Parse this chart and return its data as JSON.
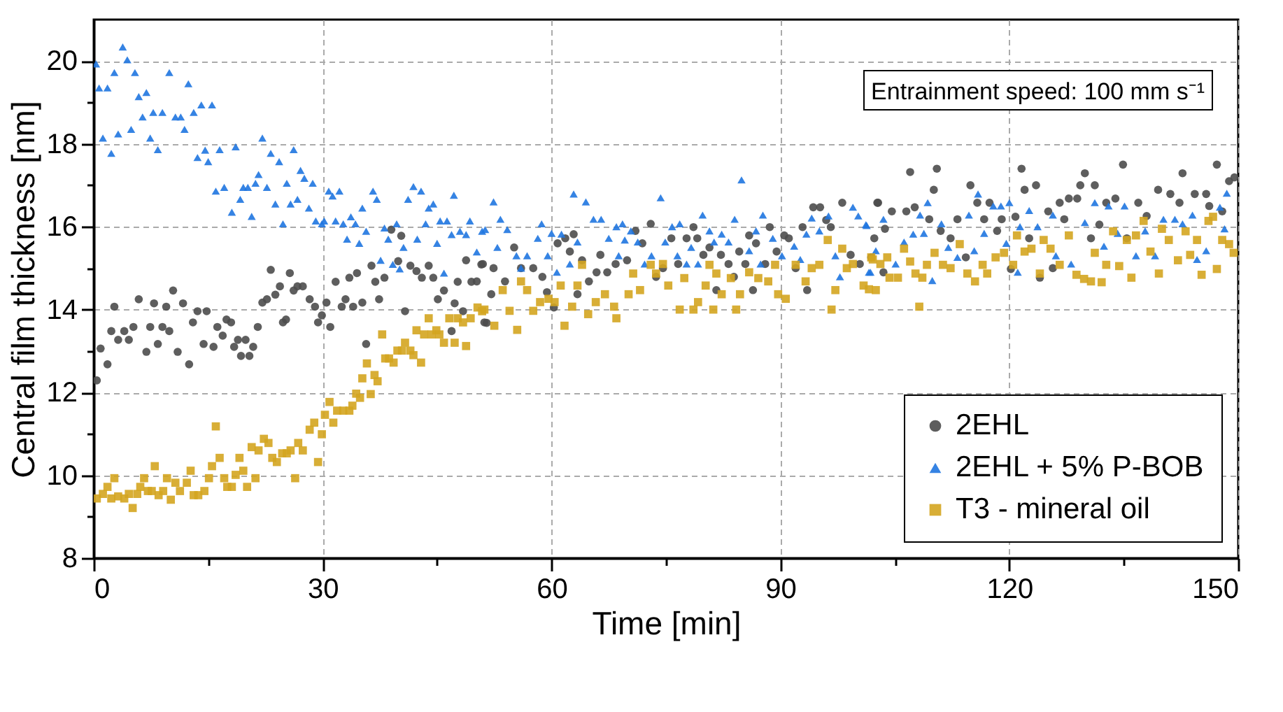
{
  "chart_data": {
    "type": "scatter",
    "xlabel": "Time [min]",
    "ylabel": "Central film thickness [nm]",
    "annotations": [
      "Entrainment speed: 100 mm s⁻¹"
    ],
    "xlim": [
      0,
      150
    ],
    "ylim": [
      8,
      21
    ],
    "xticks": [
      0,
      {
        "value": 15,
        "label": null
      },
      30,
      {
        "value": 45,
        "label": null
      },
      60,
      {
        "value": 75,
        "label": null
      },
      90,
      {
        "value": 105,
        "label": null
      },
      120,
      {
        "value": 135,
        "label": null
      },
      150
    ],
    "yticks": [
      8,
      {
        "value": 9,
        "label": null
      },
      10,
      {
        "value": 11,
        "label": null
      },
      12,
      {
        "value": 13,
        "label": null
      },
      14,
      {
        "value": 15,
        "label": null
      },
      16,
      {
        "value": 17,
        "label": null
      },
      18,
      {
        "value": 19,
        "label": null
      },
      20
    ],
    "grid": true,
    "legend": "bottom right",
    "series": [
      {
        "name": "2EHL",
        "color": "#4d4d4d",
        "marker": "circle",
        "x": [
          0.4,
          0.9,
          1.8,
          2.7,
          2.3,
          3.2,
          4.0,
          4.6,
          5.2,
          5.9,
          6.9,
          7.4,
          7.9,
          8.4,
          9.0,
          9.5,
          9.9,
          10.4,
          11.0,
          11.7,
          12.5,
          13.0,
          13.6,
          14.4,
          14.8,
          15.7,
          16.2,
          16.9,
          17.4,
          18.0,
          18.4,
          18.9,
          19.3,
          19.9,
          20.4,
          20.9,
          21.5,
          22.1,
          22.7,
          23.2,
          23.8,
          24.4,
          24.8,
          25.2,
          25.7,
          26.2,
          26.7,
          27.4,
          28.3,
          29.0,
          29.4,
          29.9,
          30.5,
          31.0,
          31.7,
          32.5,
          33.0,
          33.5,
          34.0,
          34.5,
          35.2,
          35.7,
          36.4,
          36.9,
          37.4,
          38.1,
          39.0,
          39.9,
          40.3,
          40.8,
          41.5,
          42.3,
          43.0,
          43.9,
          44.5,
          45.1,
          45.9,
          46.9,
          47.3,
          47.7,
          48.4,
          48.8,
          49.5,
          50.8,
          51.2,
          51.0,
          52.4,
          52.1,
          50.2,
          51.5,
          53.9,
          55.1,
          56.0,
          57.6,
          58.8,
          59.4,
          60.3,
          60.8,
          61.8,
          62.4,
          62.9,
          63.4,
          64.0,
          64.9,
          65.9,
          66.4,
          67.3,
          68.4,
          69.9,
          71.0,
          71.9,
          73.0,
          73.7,
          74.6,
          75.7,
          76.6,
          77.7,
          78.6,
          79.1,
          79.9,
          80.7,
          81.6,
          82.2,
          83.2,
          83.9,
          84.6,
          85.4,
          85.9,
          86.4,
          86.8,
          88.0,
          88.6,
          89.5,
          90.5,
          91.1,
          92.0,
          92.9,
          93.5,
          94.3,
          95.2,
          96.0,
          96.6,
          98.1,
          99.2,
          100.4,
          102.7,
          102.8,
          101.9,
          104.6,
          103.7,
          102.3,
          103.5,
          107.0,
          106.5,
          107.6,
          110.1,
          110.5,
          109.5,
          111.0,
          112.3,
          113.2,
          114.3,
          114.9,
          115.8,
          116.7,
          117.4,
          118.4,
          119.0,
          120.2,
          120.8,
          121.6,
          122.0,
          122.6,
          123.5,
          124.0,
          125.1,
          125.7,
          126.6,
          127.2,
          127.8,
          128.9,
          129.3,
          129.9,
          130.7,
          131.2,
          131.8,
          132.7,
          133.9,
          134.9,
          135.4,
          136.9,
          138.0,
          139.5,
          141.1,
          142.3,
          142.7,
          144.3,
          145.8,
          146.2,
          147.2,
          147.9,
          148.8,
          149.5
        ],
        "values": [
          12.29,
          13.06,
          12.68,
          14.07,
          13.48,
          13.27,
          13.48,
          13.27,
          13.58,
          14.25,
          12.98,
          13.58,
          14.15,
          13.17,
          13.58,
          14.07,
          13.48,
          14.46,
          12.98,
          14.15,
          12.68,
          13.69,
          13.96,
          13.17,
          13.96,
          13.1,
          13.58,
          13.37,
          13.76,
          13.69,
          13.1,
          13.27,
          12.88,
          13.27,
          12.88,
          13.1,
          13.58,
          14.17,
          14.25,
          14.96,
          14.36,
          14.56,
          13.69,
          13.76,
          14.88,
          14.46,
          14.56,
          14.56,
          14.25,
          14.07,
          13.69,
          13.86,
          14.17,
          13.58,
          14.67,
          14.07,
          14.25,
          14.77,
          14.07,
          14.88,
          14.17,
          13.17,
          15.06,
          14.67,
          14.25,
          14.77,
          15.93,
          15.17,
          15.78,
          13.96,
          15.06,
          14.93,
          14.77,
          15.06,
          14.77,
          14.25,
          14.46,
          13.48,
          14.15,
          14.67,
          13.96,
          15.19,
          14.67,
          15.09,
          13.69,
          15.1,
          15.0,
          14.37,
          14.68,
          13.68,
          14.68,
          15.5,
          15.0,
          15.0,
          14.79,
          14.42,
          14.05,
          15.6,
          15.72,
          15.4,
          15.82,
          14.37,
          15.19,
          14.68,
          14.9,
          15.32,
          14.9,
          15.1,
          15.19,
          15.9,
          15.6,
          16.07,
          14.79,
          15.0,
          15.72,
          15.1,
          15.72,
          15.99,
          15.72,
          15.32,
          15.5,
          14.47,
          15.32,
          15.1,
          14.79,
          15.4,
          15.1,
          15.79,
          14.47,
          15.6,
          15.1,
          15.99,
          15.4,
          15.79,
          15.72,
          15.0,
          15.99,
          14.47,
          16.47,
          16.47,
          16.16,
          15.99,
          16.58,
          15.32,
          15.1,
          16.58,
          16.58,
          15.26,
          16.37,
          15.95,
          15.72,
          14.9,
          17.32,
          16.37,
          16.47,
          16.89,
          17.4,
          16.18,
          15.9,
          15.72,
          16.18,
          15.26,
          17.0,
          16.58,
          16.18,
          16.58,
          15.9,
          16.18,
          14.98,
          16.24,
          17.4,
          16.89,
          15.72,
          17.0,
          14.77,
          16.37,
          15.0,
          16.58,
          16.18,
          16.68,
          16.68,
          17.0,
          17.29,
          15.72,
          17.0,
          16.05,
          16.58,
          16.68,
          17.5,
          15.72,
          16.58,
          16.26,
          16.89,
          16.79,
          16.58,
          17.29,
          16.79,
          16.79,
          16.5,
          17.5,
          16.37,
          17.1,
          17.19
        ]
      },
      {
        "name": "2EHL + 5% P-BOB",
        "color": "#1f75e0",
        "marker": "triangle",
        "x": [
          0.3,
          0.7,
          1.8,
          1.2,
          2.3,
          3.2,
          2.7,
          3.8,
          4.4,
          4.9,
          5.4,
          5.9,
          6.4,
          6.9,
          7.4,
          7.8,
          8.4,
          9.0,
          9.9,
          10.7,
          11.4,
          11.9,
          12.4,
          13.1,
          13.6,
          14.1,
          14.6,
          15.0,
          15.5,
          16.0,
          16.5,
          17.1,
          18.1,
          18.6,
          19.2,
          19.6,
          20.2,
          20.7,
          21.2,
          21.6,
          22.1,
          22.7,
          23.2,
          23.8,
          24.3,
          24.8,
          25.3,
          25.8,
          26.2,
          26.7,
          27.1,
          27.6,
          28.2,
          28.7,
          29.1,
          29.9,
          30.2,
          30.8,
          31.3,
          31.7,
          32.2,
          32.7,
          33.2,
          33.7,
          34.3,
          34.8,
          35.2,
          35.7,
          36.6,
          37.1,
          37.6,
          38.1,
          38.6,
          39.2,
          39.7,
          40.1,
          40.6,
          41.2,
          41.9,
          42.4,
          42.9,
          43.5,
          43.9,
          44.5,
          45.0,
          45.4,
          45.9,
          46.3,
          46.9,
          47.2,
          48.0,
          48.8,
          49.3,
          50.2,
          50.9,
          52.4,
          53.3,
          54.2,
          51.3,
          52.9,
          55.4,
          56.8,
          56.0,
          58.2,
          58.7,
          59.5,
          60.0,
          60.7,
          61.3,
          62.9,
          64.5,
          63.4,
          62.4,
          65.5,
          66.5,
          67.5,
          68.5,
          69.3,
          69.6,
          68.8,
          70.4,
          71.3,
          72.2,
          73.1,
          74.3,
          74.9,
          75.8,
          76.8,
          76.5,
          77.7,
          78.3,
          79.8,
          79.2,
          80.7,
          81.3,
          82.3,
          83.2,
          84.0,
          84.9,
          85.9,
          86.8,
          87.7,
          87.4,
          89.0,
          90.2,
          91.8,
          92.6,
          93.4,
          94.1,
          95.1,
          96.3,
          97.2,
          97.8,
          99.5,
          100.2,
          101.2,
          101.8,
          101.3,
          103.5,
          102.5,
          101.6,
          105.1,
          106.2,
          107.4,
          108.3,
          109.3,
          108.8,
          109.9,
          111.1,
          112.0,
          113.2,
          114.7,
          115.4,
          115.9,
          116.7,
          117.9,
          118.9,
          120.0,
          119.6,
          121.4,
          121.1,
          122.6,
          123.7,
          125.7,
          126.1,
          128.1,
          129.9,
          131.2,
          132.4,
          133.0,
          134.2,
          135.1,
          136.6,
          137.8,
          139.1,
          140.2,
          141.7,
          142.7,
          144.0,
          144.6,
          145.8,
          147.6,
          148.5,
          148.2
        ],
        "values": [
          19.93,
          19.35,
          19.35,
          18.14,
          17.77,
          18.24,
          19.72,
          20.34,
          20.03,
          18.35,
          19.72,
          19.14,
          18.65,
          19.24,
          18.14,
          18.76,
          17.86,
          18.76,
          19.72,
          18.65,
          18.65,
          18.35,
          19.45,
          18.76,
          17.67,
          18.94,
          17.85,
          17.57,
          18.94,
          16.86,
          17.86,
          16.95,
          16.35,
          17.93,
          16.66,
          16.95,
          16.95,
          16.25,
          17.05,
          17.26,
          18.14,
          16.95,
          17.77,
          16.55,
          17.57,
          16.07,
          17.05,
          16.55,
          17.86,
          16.66,
          17.36,
          17.17,
          16.45,
          17.05,
          16.14,
          16.07,
          16.14,
          16.86,
          16.74,
          16.14,
          16.86,
          16.07,
          15.7,
          16.24,
          16.07,
          15.6,
          16.45,
          15.89,
          16.86,
          16.66,
          15.19,
          15.97,
          15.7,
          15.09,
          16.07,
          14.98,
          15.5,
          16.66,
          16.97,
          15.7,
          16.86,
          16.07,
          16.45,
          16.55,
          15.6,
          16.14,
          14.88,
          16.14,
          15.81,
          16.76,
          15.89,
          15.81,
          16.14,
          15.39,
          15.89,
          16.6,
          16.18,
          15.93,
          15.93,
          15.5,
          15.3,
          15.3,
          15.0,
          15.72,
          16.07,
          15.3,
          15.84,
          14.9,
          15.82,
          16.79,
          16.6,
          15.63,
          15.1,
          16.18,
          16.18,
          15.72,
          16.0,
          16.07,
          15.68,
          15.3,
          15.9,
          15.63,
          15.1,
          15.3,
          16.7,
          15.63,
          16.0,
          16.07,
          15.3,
          15.1,
          15.5,
          16.28,
          15.1,
          15.9,
          15.63,
          15.82,
          15.63,
          16.18,
          17.13,
          15.42,
          15.9,
          16.28,
          15.1,
          15.72,
          15.3,
          15.53,
          15.21,
          15.82,
          16.21,
          15.9,
          16.26,
          15.3,
          14.79,
          16.47,
          16.26,
          16.05,
          14.9,
          16.03,
          16.18,
          15.42,
          14.9,
          15.1,
          15.63,
          15.82,
          16.28,
          16.58,
          15.84,
          14.7,
          16.07,
          15.5,
          15.26,
          16.28,
          15.42,
          16.79,
          15.84,
          16.5,
          16.5,
          16.58,
          15.6,
          16.0,
          14.9,
          16.39,
          16.0,
          16.28,
          15.3,
          15.1,
          16.1,
          16.58,
          15.53,
          16.5,
          15.84,
          16.5,
          15.3,
          15.9,
          15.3,
          16.18,
          16.18,
          16.07,
          16.28,
          15.21,
          15.42,
          16.47,
          16.81,
          15.95
        ]
      },
      {
        "name": "T3 - mineral oil",
        "color": "#d4a520",
        "marker": "square",
        "x": [
          0.4,
          1.2,
          1.8,
          2.3,
          2.7,
          3.2,
          4.0,
          4.6,
          5.1,
          5.7,
          6.1,
          6.6,
          7.1,
          7.6,
          8.0,
          8.5,
          9.1,
          9.6,
          10.1,
          10.7,
          11.3,
          12.2,
          12.7,
          13.1,
          13.7,
          14.5,
          15.1,
          15.5,
          16.0,
          16.5,
          17.1,
          17.5,
          18.1,
          18.6,
          19.1,
          19.6,
          20.1,
          20.7,
          21.2,
          21.6,
          22.3,
          22.9,
          23.4,
          24.0,
          24.7,
          25.3,
          25.8,
          26.4,
          26.8,
          27.4,
          28.3,
          28.9,
          29.4,
          29.9,
          30.3,
          30.9,
          31.4,
          31.9,
          32.7,
          33.5,
          33.9,
          34.4,
          34.9,
          35.2,
          35.8,
          36.3,
          36.8,
          37.2,
          37.8,
          38.2,
          38.7,
          39.3,
          39.8,
          40.4,
          40.8,
          41.5,
          41.9,
          42.3,
          42.9,
          43.3,
          43.9,
          44.3,
          44.9,
          45.3,
          45.9,
          46.6,
          47.3,
          47.7,
          48.4,
          48.8,
          49.4,
          50.3,
          50.9,
          51.2,
          52.5,
          53.6,
          54.5,
          55.5,
          56.0,
          56.8,
          57.6,
          58.5,
          59.6,
          60.4,
          61.2,
          61.7,
          62.7,
          63.4,
          64.0,
          64.8,
          65.8,
          67.0,
          68.2,
          68.5,
          70.1,
          70.7,
          71.6,
          73.0,
          73.7,
          74.6,
          75.3,
          76.8,
          77.4,
          78.6,
          79.2,
          80.2,
          80.7,
          81.2,
          81.6,
          82.3,
          83.5,
          84.2,
          84.7,
          85.9,
          87.1,
          88.4,
          89.3,
          89.7,
          90.7,
          92.0,
          93.3,
          94.1,
          95.1,
          96.2,
          96.7,
          97.2,
          98.1,
          98.7,
          99.5,
          100.9,
          102.1,
          101.6,
          102.5,
          101.9,
          103.1,
          104.0,
          104.3,
          105.4,
          106.2,
          107.0,
          107.7,
          108.2,
          108.6,
          109.2,
          110.2,
          111.3,
          112.3,
          113.5,
          114.5,
          115.5,
          116.5,
          117.1,
          118.2,
          119.3,
          120.5,
          121.0,
          122.0,
          122.9,
          124.0,
          124.5,
          125.4,
          126.6,
          127.8,
          128.8,
          129.8,
          130.7,
          131.2,
          132.1,
          132.7,
          133.6,
          134.4,
          135.4,
          136.0,
          136.6,
          137.6,
          138.5,
          139.6,
          140.0,
          140.9,
          142.1,
          143.1,
          143.7,
          144.6,
          145.2,
          146.1,
          146.7,
          147.2,
          147.9,
          148.8,
          149.4
        ],
        "values": [
          9.44,
          9.55,
          9.72,
          9.44,
          9.93,
          9.49,
          9.44,
          9.55,
          9.21,
          9.55,
          9.72,
          9.93,
          9.62,
          9.62,
          10.22,
          9.52,
          9.62,
          9.93,
          9.41,
          9.82,
          9.62,
          9.82,
          10.11,
          9.52,
          9.52,
          9.62,
          9.93,
          10.22,
          11.18,
          10.42,
          9.93,
          9.72,
          9.72,
          10.01,
          10.42,
          10.11,
          9.72,
          10.68,
          9.93,
          10.6,
          10.88,
          10.78,
          10.42,
          10.32,
          10.53,
          10.53,
          10.6,
          9.93,
          10.78,
          10.6,
          11.1,
          11.27,
          10.32,
          10.99,
          11.46,
          11.77,
          11.27,
          11.56,
          11.56,
          11.56,
          11.68,
          11.97,
          11.87,
          12.34,
          12.7,
          11.96,
          12.42,
          12.27,
          13.4,
          12.82,
          12.82,
          12.72,
          13.01,
          13.01,
          13.2,
          13.01,
          12.9,
          13.5,
          12.72,
          13.4,
          13.79,
          13.4,
          13.5,
          13.4,
          13.2,
          13.79,
          13.2,
          13.79,
          13.69,
          13.12,
          13.79,
          14.05,
          13.96,
          14.0,
          13.61,
          14.47,
          13.97,
          13.51,
          14.68,
          14.47,
          13.97,
          14.18,
          14.26,
          14.18,
          14.58,
          13.61,
          14.07,
          14.58,
          15.08,
          13.89,
          14.18,
          14.37,
          14.07,
          13.79,
          14.37,
          14.87,
          14.47,
          15.08,
          14.87,
          15.1,
          14.58,
          14.0,
          14.76,
          14.0,
          14.18,
          14.58,
          15.08,
          14.0,
          14.87,
          14.37,
          14.76,
          14.0,
          14.37,
          14.9,
          14.76,
          14.68,
          15.08,
          14.37,
          14.26,
          15.08,
          14.68,
          15.0,
          15.08,
          15.68,
          14.0,
          14.47,
          15.47,
          15.0,
          15.1,
          14.58,
          15.21,
          14.49,
          14.47,
          15.26,
          15.1,
          15.26,
          14.77,
          14.77,
          15.47,
          15.16,
          14.87,
          14.07,
          14.77,
          15.08,
          15.37,
          15.08,
          15.0,
          15.58,
          14.87,
          14.68,
          15.08,
          14.87,
          15.26,
          15.37,
          15.08,
          15.79,
          15.4,
          15.47,
          14.87,
          15.68,
          15.47,
          15.08,
          15.79,
          14.84,
          14.74,
          14.68,
          15.37,
          14.66,
          15.08,
          15.89,
          15.05,
          15.68,
          14.77,
          15.79,
          16.14,
          15.4,
          14.87,
          15.95,
          15.68,
          15.19,
          15.89,
          15.32,
          15.68,
          14.84,
          16.14,
          16.24,
          14.98,
          15.68,
          15.58,
          15.37
        ]
      }
    ]
  }
}
